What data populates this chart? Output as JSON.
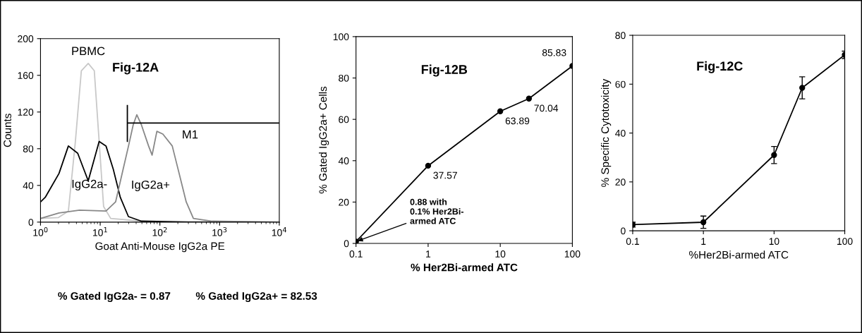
{
  "chart_data": [
    {
      "type": "line",
      "title": "Fig-12A",
      "xlabel": "Goat Anti-Mouse IgG2a PE",
      "ylabel": "Counts",
      "log": "x",
      "xlim": [
        1,
        10000
      ],
      "xticks": [
        {
          "value": 1,
          "label": "10$^{0}$"
        },
        {
          "value": 10,
          "label": "10$^{1}$"
        },
        {
          "value": 100,
          "label": "10$^{2}$"
        },
        {
          "value": 1000,
          "label": "10$^{3}$"
        },
        {
          "value": 10000,
          "label": "10$^{4}$"
        }
      ],
      "ylim": [
        0,
        200
      ],
      "yticks": [
        0,
        40,
        80,
        120,
        160,
        200
      ],
      "marker": "none",
      "grid": false,
      "series": [
        {
          "name": "PBMC",
          "color": "#c8c8c8",
          "x": [
            1,
            2.0,
            2.93,
            3.84,
            4.83,
            6.3,
            7.96,
            9.6,
            11.4,
            15.0,
            49,
            10000
          ],
          "values": [
            4,
            5,
            12,
            88,
            165,
            173,
            165,
            88,
            17,
            4,
            1,
            0
          ]
        },
        {
          "name": "IgG2a-",
          "color": "#000000",
          "x": [
            1,
            1.2,
            2.04,
            2.93,
            4.2,
            6.3,
            9.6,
            12.5,
            16.5,
            21.7,
            29.7,
            49,
            302,
            10000
          ],
          "values": [
            22,
            27,
            53,
            83,
            75,
            45,
            88,
            83,
            58,
            27,
            6,
            1,
            0,
            0
          ]
        },
        {
          "name": "IgG2a+",
          "color": "#888888",
          "x": [
            1,
            2.04,
            4.5,
            12.5,
            18.1,
            23.7,
            29.8,
            35.7,
            41,
            49,
            64.6,
            74,
            89,
            112,
            161,
            201,
            276,
            364,
            754,
            10000
          ],
          "values": [
            4,
            10,
            13,
            12,
            22,
            55,
            83,
            106,
            117,
            106,
            83,
            73,
            99,
            96,
            83,
            58,
            22,
            4,
            1,
            0
          ]
        },
        {
          "name": "M1",
          "color": "#000000",
          "x": [
            28.5,
            28.5,
            28.5,
            10000
          ],
          "values": [
            127,
            88,
            108,
            108
          ]
        }
      ],
      "annotations": [
        "% Gated IgG2a- = 0.87",
        "% Gated IgG2a+ = 82.53"
      ]
    },
    {
      "type": "line",
      "title": "Fig-12B",
      "xlabel": "% Her2Bi-armed ATC",
      "ylabel": "% Gated IgG2a+ Cells",
      "log": "x",
      "xlim": [
        0.1,
        100
      ],
      "xticks": [
        0.1,
        1,
        10,
        100
      ],
      "ylim": [
        0,
        100
      ],
      "yticks": [
        0,
        20,
        40,
        60,
        80,
        100
      ],
      "marker": "circle",
      "grid": false,
      "series": [
        {
          "color": "#000000",
          "x": [
            0.1,
            1,
            10,
            25,
            100
          ],
          "values": [
            0.88,
            37.57,
            63.89,
            70.04,
            85.83
          ],
          "value_labels": [
            null,
            "37.57",
            "63.89",
            "70.04",
            "85.83"
          ]
        }
      ],
      "annotations": [
        {
          "text": "0.88 with\n0.1% Her2Bi-\narmed ATC",
          "x": 0.1,
          "y": 0.88
        }
      ]
    },
    {
      "type": "line",
      "title": "Fig-12C",
      "xlabel": "%Her2Bi-armed ATC",
      "ylabel": "% Specific Cytotoxicity",
      "log": "x",
      "xlim": [
        0.1,
        100
      ],
      "xticks": [
        0.1,
        1,
        10,
        100
      ],
      "ylim": [
        0,
        80
      ],
      "yticks": [
        0,
        20,
        40,
        60,
        80
      ],
      "marker": "circle",
      "grid": false,
      "series": [
        {
          "color": "#000000",
          "x": [
            0.1,
            1,
            10,
            25,
            100
          ],
          "values": [
            2.5,
            3.5,
            31,
            58.5,
            72
          ],
          "errors": [
            1,
            2.5,
            3.5,
            4.5,
            1.5
          ]
        }
      ]
    }
  ]
}
